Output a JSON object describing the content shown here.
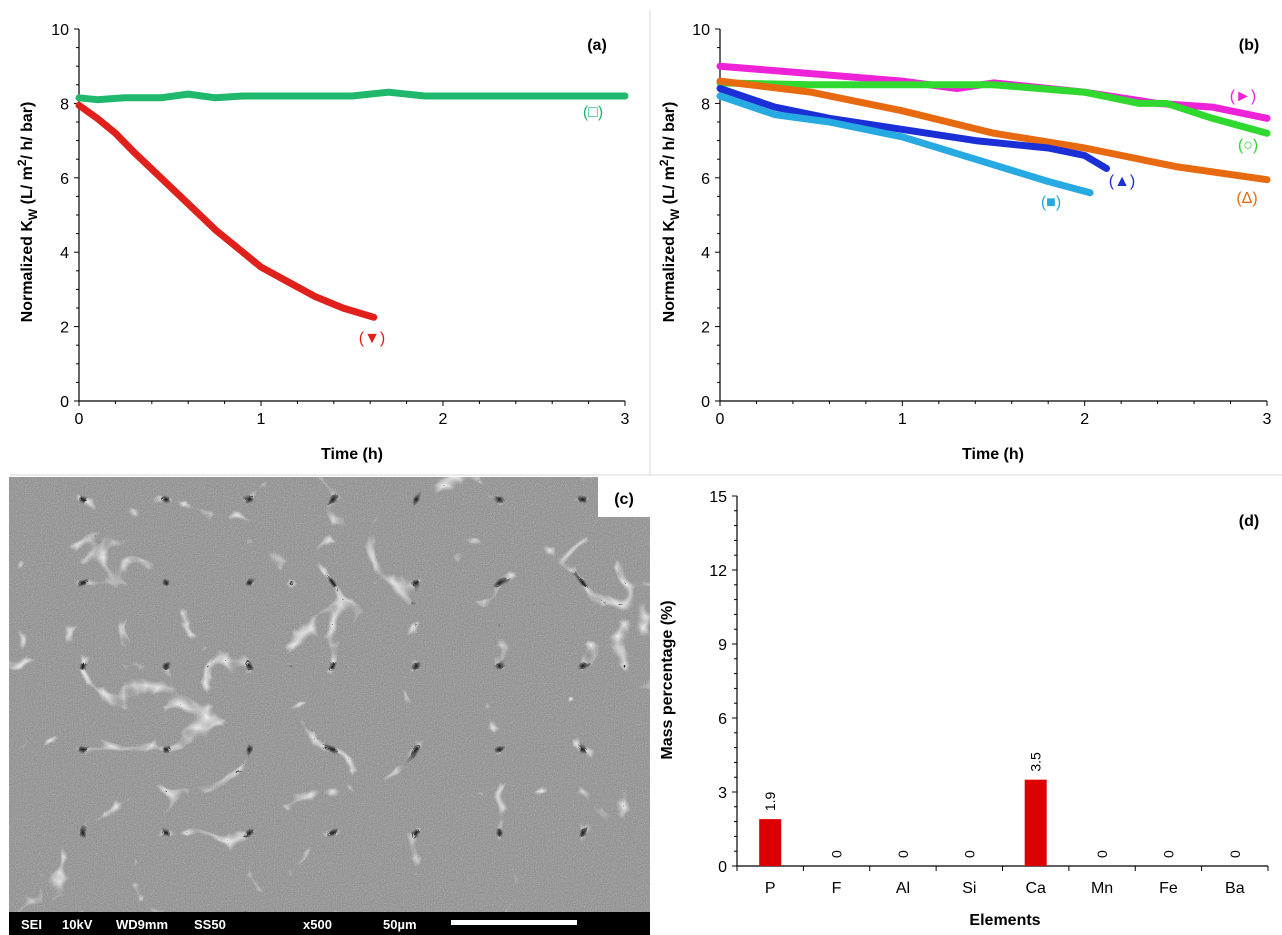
{
  "chart_data": [
    {
      "panel": "(a)",
      "type": "line",
      "xlabel": "Time (h)",
      "ylabel_parts": [
        "Normalized  K",
        "W",
        "  (L/ m",
        "2",
        "/ h/ bar)"
      ],
      "xlim": [
        0,
        3
      ],
      "ylim": [
        0,
        10
      ],
      "xticks": [
        "0",
        "1",
        "2",
        "3"
      ],
      "yticks": [
        "0",
        "2",
        "4",
        "6",
        "8",
        "10"
      ],
      "series": [
        {
          "marker_label": "(□)",
          "color": "#1fb86c",
          "x": [
            0,
            0.1,
            0.25,
            0.45,
            0.6,
            0.75,
            0.9,
            1.1,
            1.3,
            1.5,
            1.7,
            1.9,
            2.2,
            2.5,
            2.8,
            3.0
          ],
          "y": [
            8.15,
            8.1,
            8.15,
            8.15,
            8.25,
            8.15,
            8.2,
            8.2,
            8.2,
            8.2,
            8.3,
            8.2,
            8.2,
            8.2,
            8.2,
            8.2
          ]
        },
        {
          "marker_label": "(▼)",
          "color": "#e0201b",
          "x": [
            0,
            0.1,
            0.2,
            0.3,
            0.45,
            0.6,
            0.75,
            0.9,
            1.0,
            1.15,
            1.3,
            1.45,
            1.62
          ],
          "y": [
            7.95,
            7.6,
            7.2,
            6.7,
            6.0,
            5.3,
            4.6,
            4.0,
            3.6,
            3.2,
            2.8,
            2.5,
            2.25
          ]
        }
      ]
    },
    {
      "panel": "(b)",
      "type": "line",
      "xlabel": "Time (h)",
      "ylabel_parts": [
        "Normalized  K",
        "W",
        "  (L/ m",
        "2",
        "/ h/ bar)"
      ],
      "xlim": [
        0,
        3
      ],
      "ylim": [
        0,
        10
      ],
      "xticks": [
        "0",
        "1",
        "2",
        "3"
      ],
      "yticks": [
        "0",
        "2",
        "4",
        "6",
        "8",
        "10"
      ],
      "series": [
        {
          "marker_label": "(►)",
          "color": "#ee22d6",
          "x": [
            0,
            0.5,
            1.0,
            1.3,
            1.5,
            2.0,
            2.4,
            2.7,
            3.0
          ],
          "y": [
            9.0,
            8.8,
            8.6,
            8.4,
            8.55,
            8.3,
            8.0,
            7.9,
            7.6
          ]
        },
        {
          "marker_label": "(○)",
          "color": "#2fd92f",
          "x": [
            0,
            0.5,
            1.0,
            1.5,
            2.0,
            2.3,
            2.45,
            2.7,
            3.0
          ],
          "y": [
            8.55,
            8.5,
            8.5,
            8.5,
            8.3,
            8.0,
            8.0,
            7.6,
            7.2
          ]
        },
        {
          "marker_label": "(Δ)",
          "color": "#e86a10",
          "x": [
            0,
            0.5,
            1.0,
            1.5,
            2.0,
            2.5,
            3.0
          ],
          "y": [
            8.6,
            8.3,
            7.8,
            7.2,
            6.8,
            6.3,
            5.95
          ]
        },
        {
          "marker_label": "(▲)",
          "color": "#1b2fd6",
          "x": [
            0,
            0.3,
            0.6,
            1.0,
            1.4,
            1.8,
            2.0,
            2.12
          ],
          "y": [
            8.4,
            7.9,
            7.6,
            7.3,
            7.0,
            6.8,
            6.6,
            6.25
          ]
        },
        {
          "marker_label": "(■)",
          "color": "#27a9e1",
          "x": [
            0,
            0.3,
            0.6,
            1.0,
            1.4,
            1.8,
            2.03
          ],
          "y": [
            8.2,
            7.7,
            7.5,
            7.1,
            6.5,
            5.9,
            5.6
          ]
        }
      ]
    },
    {
      "panel": "(d)",
      "type": "bar",
      "xlabel": "Elements",
      "ylabel": "Mass percentage (%)",
      "ylim": [
        0,
        15
      ],
      "yticks": [
        "0",
        "3",
        "6",
        "9",
        "12",
        "15"
      ],
      "categories": [
        "P",
        "F",
        "Al",
        "Si",
        "Ca",
        "Mn",
        "Fe",
        "Ba"
      ],
      "values": [
        1.9,
        0,
        0,
        0,
        3.5,
        0,
        0,
        0
      ],
      "value_labels": [
        "1.9",
        "0",
        "0",
        "0",
        "3.5",
        "0",
        "0",
        "0"
      ],
      "color": "#dd0000"
    }
  ],
  "sem_image": {
    "panel": "(c)",
    "info": [
      "SEI",
      "10kV",
      "WD9mm",
      "SS50",
      "x500",
      "50µm"
    ]
  }
}
